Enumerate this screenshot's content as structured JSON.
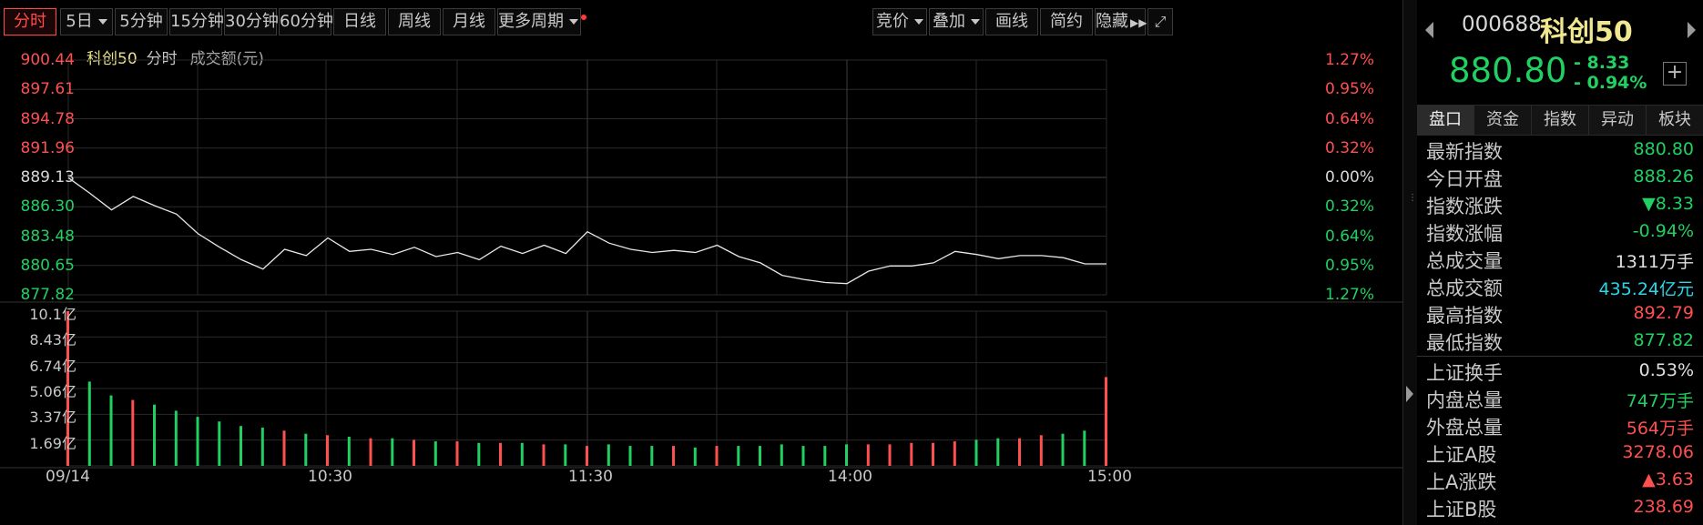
{
  "toolbar": {
    "periods": [
      "分时",
      "5日",
      "5分钟",
      "15分钟",
      "30分钟",
      "60分钟",
      "日线",
      "周线",
      "月线",
      "更多周期"
    ],
    "active_period": "分时",
    "right_tools": [
      "竞价",
      "叠加",
      "画线",
      "简约",
      "隐藏"
    ],
    "fullscreen_icon": "expand-icon"
  },
  "chart": {
    "legend_name": "科创50",
    "legend_mode": "分时",
    "legend_volume": "成交额(元)",
    "price_labels": [
      "900.44",
      "897.61",
      "894.78",
      "891.96",
      "889.13",
      "886.30",
      "883.48",
      "880.65",
      "877.82"
    ],
    "pct_labels": [
      "1.27%",
      "0.95%",
      "0.64%",
      "0.32%",
      "0.00%",
      "0.32%",
      "0.64%",
      "0.95%",
      "1.27%"
    ],
    "volume_labels": [
      "10.1亿",
      "8.43亿",
      "6.74亿",
      "5.06亿",
      "3.37亿",
      "1.69亿"
    ],
    "time_labels": [
      "09/14",
      "10:30",
      "11:30",
      "14:00",
      "15:00"
    ],
    "colors": {
      "up": "#ff5050",
      "down": "#20d060",
      "flat": "#d8d8d8",
      "line": "#e8e8e8",
      "grid": "#2a2a2a"
    }
  },
  "chart_data": {
    "type": "line",
    "title": "科创50",
    "ylabel": "",
    "xlabel": "",
    "prev_close": 889.13,
    "ylim": [
      877.82,
      900.44
    ],
    "x": [
      "09:30",
      "09:35",
      "09:40",
      "09:45",
      "09:50",
      "09:55",
      "10:00",
      "10:05",
      "10:10",
      "10:15",
      "10:20",
      "10:25",
      "10:30",
      "10:35",
      "10:40",
      "10:45",
      "10:50",
      "10:55",
      "11:00",
      "11:05",
      "11:10",
      "11:15",
      "11:20",
      "11:25",
      "11:30",
      "13:05",
      "13:10",
      "13:15",
      "13:20",
      "13:25",
      "13:30",
      "13:35",
      "13:40",
      "13:45",
      "13:50",
      "13:55",
      "14:00",
      "14:05",
      "14:10",
      "14:15",
      "14:20",
      "14:25",
      "14:30",
      "14:35",
      "14:40",
      "14:45",
      "14:50",
      "14:55",
      "15:00"
    ],
    "series": [
      {
        "values": [
          889.1,
          887.6,
          886.0,
          887.3,
          886.4,
          885.6,
          883.7,
          882.4,
          881.2,
          880.3,
          882.2,
          881.6,
          883.3,
          882.0,
          882.2,
          881.7,
          882.4,
          881.5,
          881.9,
          881.2,
          882.5,
          881.8,
          882.6,
          881.8,
          883.9,
          882.8,
          882.2,
          881.9,
          882.1,
          881.9,
          882.6,
          881.5,
          880.9,
          879.7,
          879.3,
          879.0,
          878.9,
          880.1,
          880.6,
          880.6,
          880.9,
          882.0,
          881.7,
          881.3,
          881.6,
          881.6,
          881.4,
          880.8,
          880.8
        ]
      }
    ],
    "volume": [
      10.1,
      5.5,
      4.6,
      4.3,
      4.0,
      3.6,
      3.2,
      2.9,
      2.6,
      2.5,
      2.3,
      2.1,
      2.0,
      1.9,
      1.8,
      1.8,
      1.7,
      1.6,
      1.6,
      1.5,
      1.5,
      1.5,
      1.4,
      1.4,
      1.3,
      1.4,
      1.3,
      1.3,
      1.3,
      1.2,
      1.3,
      1.3,
      1.3,
      1.4,
      1.3,
      1.3,
      1.4,
      1.4,
      1.4,
      1.5,
      1.5,
      1.6,
      1.7,
      1.8,
      1.8,
      2.0,
      2.1,
      2.3,
      5.8
    ]
  },
  "panel": {
    "code": "000688",
    "name": "科创50",
    "price": "880.80",
    "change": "- 8.33",
    "change_pct": "- 0.94%",
    "tabs": [
      "盘口",
      "资金",
      "指数",
      "异动",
      "板块"
    ],
    "rows": [
      {
        "k": "最新指数",
        "v": "880.80",
        "c": "green"
      },
      {
        "k": "今日开盘",
        "v": "888.26",
        "c": "green"
      },
      {
        "k": "指数涨跌",
        "v": "▼8.33",
        "c": "green"
      },
      {
        "k": "指数涨幅",
        "v": "-0.94%",
        "c": "green"
      },
      {
        "k": "总成交量",
        "v": "1311万手",
        "c": "white"
      },
      {
        "k": "总成交额",
        "v": "435.24亿元",
        "c": "cyan"
      },
      {
        "k": "最高指数",
        "v": "892.79",
        "c": "red"
      },
      {
        "k": "最低指数",
        "v": "877.82",
        "c": "green"
      },
      {
        "k": "上证换手",
        "v": "0.53%",
        "c": "white"
      },
      {
        "k": "内盘总量",
        "v": "747万手",
        "c": "green"
      },
      {
        "k": "外盘总量",
        "v": "564万手",
        "c": "red"
      },
      {
        "k": "上证A股",
        "v": "3278.06",
        "c": "red"
      },
      {
        "k": "上A涨跌",
        "v": "▲3.63",
        "c": "red"
      },
      {
        "k": "上证B股",
        "v": "238.69",
        "c": "red"
      }
    ]
  }
}
